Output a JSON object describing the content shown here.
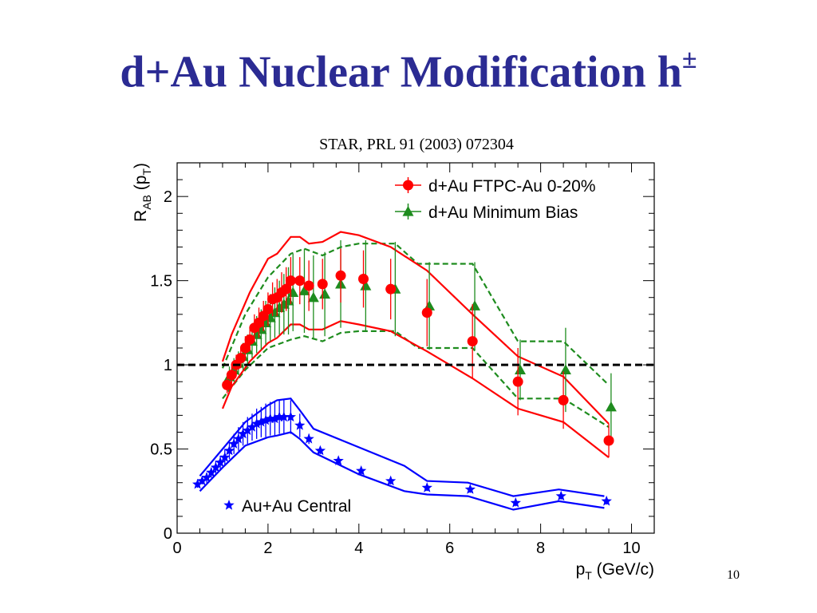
{
  "slide": {
    "title": "d+Au Nuclear Modification h",
    "title_superscript": "±",
    "citation": "STAR, PRL 91 (2003) 072304",
    "slide_number": "10"
  },
  "colors": {
    "title": "#2b2b93",
    "dau_central": "#ff0000",
    "dau_minbias": "#1e8c1e",
    "auau_central": "#0000ff",
    "unity_line": "#000000"
  },
  "chart_data": {
    "type": "scatter",
    "title": "",
    "xlabel": "p",
    "xlabel_sub": "T",
    "xlabel_unit": " (GeV/c)",
    "ylabel": "R",
    "ylabel_sub": "AB",
    "ylabel_tail": " (p",
    "ylabel_tail_sub": "T",
    "ylabel_close": ")",
    "xlim": [
      0,
      10.5
    ],
    "ylim": [
      0,
      2.2
    ],
    "xticks": [
      0,
      2,
      4,
      6,
      8,
      10
    ],
    "yticks": [
      0,
      0.5,
      1,
      1.5,
      2
    ],
    "yticklabels": [
      "0",
      "0.5",
      "1",
      "1.5",
      "2"
    ],
    "reference_line": 1,
    "series": [
      {
        "name": "d+Au FTPC-Au 0-20%",
        "marker": "circle",
        "color": "#ff0000",
        "legend_position": "top-right",
        "x": [
          1.1,
          1.2,
          1.3,
          1.4,
          1.5,
          1.6,
          1.7,
          1.8,
          1.9,
          2.0,
          2.1,
          2.2,
          2.3,
          2.4,
          2.5,
          2.7,
          2.9,
          3.2,
          3.6,
          4.1,
          4.7,
          5.5,
          6.5,
          7.5,
          8.5,
          9.5
        ],
        "y": [
          0.88,
          0.94,
          1.0,
          1.04,
          1.1,
          1.15,
          1.22,
          1.25,
          1.29,
          1.33,
          1.39,
          1.4,
          1.43,
          1.45,
          1.5,
          1.5,
          1.47,
          1.48,
          1.53,
          1.51,
          1.45,
          1.31,
          1.14,
          0.9,
          0.79,
          0.55
        ],
        "err": [
          0.05,
          0.05,
          0.06,
          0.06,
          0.07,
          0.07,
          0.08,
          0.09,
          0.09,
          0.1,
          0.1,
          0.11,
          0.12,
          0.13,
          0.14,
          0.14,
          0.15,
          0.15,
          0.16,
          0.17,
          0.18,
          0.2,
          0.22,
          0.2,
          0.17,
          0.1
        ],
        "band_upper": [
          [
            1.0,
            1.02
          ],
          [
            1.2,
            1.18
          ],
          [
            1.6,
            1.43
          ],
          [
            2.0,
            1.63
          ],
          [
            2.2,
            1.66
          ],
          [
            2.5,
            1.76
          ],
          [
            2.7,
            1.76
          ],
          [
            2.9,
            1.72
          ],
          [
            3.2,
            1.73
          ],
          [
            3.6,
            1.79
          ],
          [
            4.0,
            1.77
          ],
          [
            4.7,
            1.7
          ],
          [
            5.5,
            1.56
          ],
          [
            6.5,
            1.3
          ],
          [
            7.5,
            1.05
          ],
          [
            8.5,
            0.93
          ],
          [
            9.5,
            0.65
          ]
        ],
        "band_lower": [
          [
            1.0,
            0.74
          ],
          [
            1.2,
            0.87
          ],
          [
            1.6,
            1.02
          ],
          [
            2.0,
            1.13
          ],
          [
            2.2,
            1.16
          ],
          [
            2.5,
            1.24
          ],
          [
            2.7,
            1.24
          ],
          [
            2.9,
            1.21
          ],
          [
            3.2,
            1.21
          ],
          [
            3.6,
            1.26
          ],
          [
            4.0,
            1.24
          ],
          [
            4.7,
            1.2
          ],
          [
            5.5,
            1.08
          ],
          [
            6.5,
            0.92
          ],
          [
            7.5,
            0.74
          ],
          [
            8.5,
            0.66
          ],
          [
            9.5,
            0.45
          ]
        ]
      },
      {
        "name": "d+Au Minimum Bias",
        "marker": "triangle",
        "color": "#1e8c1e",
        "legend_position": "top-right",
        "x": [
          1.15,
          1.25,
          1.35,
          1.45,
          1.55,
          1.65,
          1.75,
          1.85,
          1.95,
          2.05,
          2.15,
          2.25,
          2.35,
          2.45,
          2.55,
          2.8,
          3.0,
          3.25,
          3.6,
          4.15,
          4.8,
          5.55,
          6.55,
          7.55,
          8.55,
          9.55
        ],
        "y": [
          0.93,
          0.97,
          1.01,
          1.05,
          1.09,
          1.14,
          1.18,
          1.21,
          1.25,
          1.28,
          1.31,
          1.34,
          1.36,
          1.38,
          1.43,
          1.44,
          1.4,
          1.42,
          1.48,
          1.47,
          1.45,
          1.35,
          1.35,
          0.97,
          0.97,
          0.75
        ],
        "err": [
          0.06,
          0.07,
          0.07,
          0.08,
          0.09,
          0.1,
          0.11,
          0.12,
          0.13,
          0.14,
          0.15,
          0.16,
          0.18,
          0.2,
          0.23,
          0.25,
          0.25,
          0.25,
          0.26,
          0.27,
          0.28,
          0.26,
          0.26,
          0.18,
          0.25,
          0.2
        ],
        "band_upper": [
          [
            1.0,
            0.98
          ],
          [
            1.5,
            1.3
          ],
          [
            2.0,
            1.52
          ],
          [
            2.5,
            1.66
          ],
          [
            2.8,
            1.69
          ],
          [
            3.2,
            1.65
          ],
          [
            3.6,
            1.7
          ],
          [
            4.0,
            1.72
          ],
          [
            4.8,
            1.72
          ],
          [
            5.3,
            1.6
          ],
          [
            6.5,
            1.6
          ],
          [
            7.5,
            1.14
          ],
          [
            8.5,
            1.14
          ],
          [
            9.5,
            0.88
          ]
        ],
        "band_lower": [
          [
            1.0,
            0.8
          ],
          [
            1.5,
            0.97
          ],
          [
            2.0,
            1.1
          ],
          [
            2.5,
            1.15
          ],
          [
            2.8,
            1.17
          ],
          [
            3.2,
            1.14
          ],
          [
            3.6,
            1.19
          ],
          [
            4.0,
            1.2
          ],
          [
            4.8,
            1.2
          ],
          [
            5.3,
            1.1
          ],
          [
            6.5,
            1.1
          ],
          [
            7.5,
            0.8
          ],
          [
            8.5,
            0.8
          ],
          [
            9.5,
            0.63
          ]
        ]
      },
      {
        "name": "Au+Au Central",
        "marker": "star",
        "color": "#0000ff",
        "legend_position": "bottom-left",
        "x": [
          0.45,
          0.55,
          0.65,
          0.75,
          0.85,
          0.95,
          1.05,
          1.15,
          1.25,
          1.35,
          1.45,
          1.55,
          1.65,
          1.75,
          1.85,
          1.95,
          2.05,
          2.15,
          2.25,
          2.35,
          2.5,
          2.7,
          2.9,
          3.15,
          3.55,
          4.05,
          4.7,
          5.5,
          6.45,
          7.45,
          8.45,
          9.45
        ],
        "y": [
          0.29,
          0.31,
          0.33,
          0.36,
          0.39,
          0.42,
          0.45,
          0.49,
          0.53,
          0.56,
          0.59,
          0.61,
          0.63,
          0.65,
          0.66,
          0.67,
          0.68,
          0.68,
          0.69,
          0.69,
          0.69,
          0.64,
          0.56,
          0.49,
          0.43,
          0.37,
          0.31,
          0.27,
          0.26,
          0.18,
          0.22,
          0.19
        ],
        "err": [
          0.02,
          0.02,
          0.03,
          0.03,
          0.04,
          0.04,
          0.05,
          0.05,
          0.06,
          0.07,
          0.07,
          0.08,
          0.08,
          0.09,
          0.09,
          0.1,
          0.1,
          0.1,
          0.1,
          0.1,
          0.1,
          0.07,
          0.03,
          0.02,
          0.02,
          0.02,
          0.02,
          0.02,
          0.02,
          0.02,
          0.02,
          0.02
        ],
        "band_upper": [
          [
            0.5,
            0.34
          ],
          [
            1.0,
            0.5
          ],
          [
            1.5,
            0.66
          ],
          [
            2.0,
            0.76
          ],
          [
            2.2,
            0.79
          ],
          [
            2.5,
            0.8
          ],
          [
            2.7,
            0.73
          ],
          [
            3.0,
            0.62
          ],
          [
            4.0,
            0.51
          ],
          [
            5.0,
            0.4
          ],
          [
            5.5,
            0.31
          ],
          [
            6.4,
            0.3
          ],
          [
            7.4,
            0.22
          ],
          [
            8.4,
            0.26
          ],
          [
            9.4,
            0.22
          ]
        ],
        "band_lower": [
          [
            0.5,
            0.25
          ],
          [
            1.0,
            0.39
          ],
          [
            1.5,
            0.52
          ],
          [
            2.0,
            0.57
          ],
          [
            2.2,
            0.58
          ],
          [
            2.5,
            0.6
          ],
          [
            2.7,
            0.56
          ],
          [
            3.0,
            0.48
          ],
          [
            4.0,
            0.35
          ],
          [
            5.0,
            0.25
          ],
          [
            5.5,
            0.23
          ],
          [
            6.4,
            0.22
          ],
          [
            7.4,
            0.14
          ],
          [
            8.4,
            0.19
          ],
          [
            9.4,
            0.15
          ]
        ]
      }
    ]
  }
}
